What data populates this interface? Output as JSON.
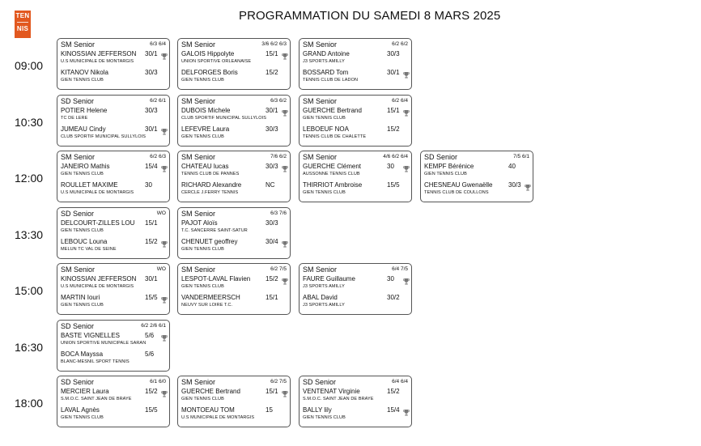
{
  "header": {
    "logo_top": "TEN",
    "logo_bottom": "NIS",
    "title": "PROGRAMMATION DU SAMEDI 8 MARS 2025"
  },
  "slots": [
    {
      "time": "09:00",
      "matches": [
        {
          "category": "SM Senior",
          "score": "6/3 6/4",
          "p1": {
            "name": "KINOSSIAN JEFFERSON",
            "rank": "30/1",
            "club": "U.S MUNICIPALE DE MONTARGIS",
            "winner": true
          },
          "p2": {
            "name": "KITANOV Nikola",
            "rank": "30/3",
            "club": "GIEN TENNIS CLUB",
            "winner": false
          }
        },
        {
          "category": "SM Senior",
          "score": "3/6 6/2 6/3",
          "p1": {
            "name": "GALOIS Hippolyte",
            "rank": "15/1",
            "club": "UNION SPORTIVE ORLEANAISE",
            "winner": true
          },
          "p2": {
            "name": "DELFORGES Boris",
            "rank": "15/2",
            "club": "GIEN TENNIS CLUB",
            "winner": false
          }
        },
        {
          "category": "SM Senior",
          "score": "6/2 6/2",
          "p1": {
            "name": "GRAND Antoine",
            "rank": "30/3",
            "club": "J3 SPORTS AMILLY",
            "winner": false
          },
          "p2": {
            "name": "BOSSARD Tom",
            "rank": "30/1",
            "club": "TENNIS CLUB DE LADON",
            "winner": true
          }
        }
      ]
    },
    {
      "time": "10:30",
      "matches": [
        {
          "category": "SD Senior",
          "score": "6/2 6/1",
          "p1": {
            "name": "POTIER Helene",
            "rank": "30/3",
            "club": "TC DE LERE",
            "winner": false
          },
          "p2": {
            "name": "JUMEAU Cindy",
            "rank": "30/1",
            "club": "CLUB SPORTIF MUNICIPAL SULLYLOIS",
            "winner": true
          }
        },
        {
          "category": "SM Senior",
          "score": "6/3 6/2",
          "p1": {
            "name": "DUBOIS Michele",
            "rank": "30/1",
            "club": "CLUB SPORTIF MUNICIPAL SULLYLOIS",
            "winner": true
          },
          "p2": {
            "name": "LEFEVRE Laura",
            "rank": "30/3",
            "club": "GIEN TENNIS CLUB",
            "winner": false
          }
        },
        {
          "category": "SM Senior",
          "score": "6/2 6/4",
          "p1": {
            "name": "GUERCHE Bertrand",
            "rank": "15/1",
            "club": "GIEN TENNIS CLUB",
            "winner": true
          },
          "p2": {
            "name": "LEBOEUF NOA",
            "rank": "15/2",
            "club": "TENNIS CLUB DE CHALETTE",
            "winner": false
          }
        }
      ]
    },
    {
      "time": "12:00",
      "matches": [
        {
          "category": "SM Senior",
          "score": "6/2 6/3",
          "p1": {
            "name": "JANEIRO Mathis",
            "rank": "15/4",
            "club": "GIEN TENNIS CLUB",
            "winner": true
          },
          "p2": {
            "name": "ROULLET MAXIME",
            "rank": "30",
            "club": "U.S MUNICIPALE DE MONTARGIS",
            "winner": false
          }
        },
        {
          "category": "SM Senior",
          "score": "7/6 6/2",
          "p1": {
            "name": "CHATEAU lucas",
            "rank": "30/3",
            "club": "TENNIS CLUB DE PANNES",
            "winner": true
          },
          "p2": {
            "name": "RICHARD Alexandre",
            "rank": "NC",
            "club": "CERCLE J.FERRY TENNIS",
            "winner": false
          }
        },
        {
          "category": "SM Senior",
          "score": "4/6 6/2 6/4",
          "p1": {
            "name": "GUERCHE Clément",
            "rank": "30",
            "club": "AUSSONNE TENNIS CLUB",
            "winner": true
          },
          "p2": {
            "name": "THIRRIOT Ambroise",
            "rank": "15/5",
            "club": "GIEN TENNIS CLUB",
            "winner": false
          }
        },
        {
          "category": "SD Senior",
          "score": "7/5 6/1",
          "p1": {
            "name": "KEMPF Bérénice",
            "rank": "40",
            "club": "GIEN TENNIS CLUB",
            "winner": false
          },
          "p2": {
            "name": "CHESNEAU Gwenaëlle",
            "rank": "30/3",
            "club": "TENNIS CLUB DE COULLONS",
            "winner": true
          }
        }
      ]
    },
    {
      "time": "13:30",
      "matches": [
        {
          "category": "SD Senior",
          "score": "WO",
          "p1": {
            "name": "DELCOURT-ZILLES LOU",
            "rank": "15/1",
            "club": "GIEN TENNIS CLUB",
            "winner": false
          },
          "p2": {
            "name": "LEBOUC Louna",
            "rank": "15/2",
            "club": "MELUN TC VAL DE SEINE",
            "winner": true
          }
        },
        {
          "category": "SM Senior",
          "score": "6/3 7/6",
          "p1": {
            "name": "PAJOT Aloïs",
            "rank": "30/3",
            "club": "T.C. SANCERRE SAINT-SATUR",
            "winner": false
          },
          "p2": {
            "name": "CHENUET geoffrey",
            "rank": "30/4",
            "club": "GIEN TENNIS CLUB",
            "winner": true
          }
        }
      ]
    },
    {
      "time": "15:00",
      "matches": [
        {
          "category": "SM Senior",
          "score": "WO",
          "p1": {
            "name": "KINOSSIAN JEFFERSON",
            "rank": "30/1",
            "club": "U.S MUNICIPALE DE MONTARGIS",
            "winner": false
          },
          "p2": {
            "name": "MARTIN Iouri",
            "rank": "15/5",
            "club": "GIEN TENNIS CLUB",
            "winner": true
          }
        },
        {
          "category": "SM Senior",
          "score": "6/2 7/5",
          "p1": {
            "name": "LESPOT-LAVAL Flavien",
            "rank": "15/2",
            "club": "GIEN TENNIS CLUB",
            "winner": true
          },
          "p2": {
            "name": "VANDERMEERSCH",
            "rank": "15/1",
            "club": "NEUVY SUR LOIRE T.C.",
            "winner": false
          }
        },
        {
          "category": "SM Senior",
          "score": "6/4 7/5",
          "p1": {
            "name": "FAURE Guillaume",
            "rank": "30",
            "club": "J3 SPORTS AMILLY",
            "winner": true
          },
          "p2": {
            "name": "ABAL David",
            "rank": "30/2",
            "club": "J3 SPORTS AMILLY",
            "winner": false
          }
        }
      ]
    },
    {
      "time": "16:30",
      "matches": [
        {
          "category": "SD Senior",
          "score": "6/2 2/6 6/1",
          "p1": {
            "name": "BASTE VIGNELLES",
            "rank": "5/6",
            "club": "UNION SPORTIVE MUNICIPALE SARAN",
            "winner": true
          },
          "p2": {
            "name": "BOCA Mayssa",
            "rank": "5/6",
            "club": "BLANC-MESNIL SPORT TENNIS",
            "winner": false
          }
        }
      ]
    },
    {
      "time": "18:00",
      "matches": [
        {
          "category": "SD Senior",
          "score": "6/1 6/0",
          "p1": {
            "name": "MERCIER Laura",
            "rank": "15/2",
            "club": "S.M.O.C. SAINT JEAN DE BRAYE",
            "winner": true
          },
          "p2": {
            "name": "LAVAL Agnès",
            "rank": "15/5",
            "club": "GIEN TENNIS CLUB",
            "winner": false
          }
        },
        {
          "category": "SM Senior",
          "score": "6/2 7/5",
          "p1": {
            "name": "GUERCHE Bertrand",
            "rank": "15/1",
            "club": "GIEN TENNIS CLUB",
            "winner": true
          },
          "p2": {
            "name": "MONTOEAU TOM",
            "rank": "15",
            "club": "U.S MUNICIPALE DE MONTARGIS",
            "winner": false
          }
        },
        {
          "category": "SD Senior",
          "score": "6/4 6/4",
          "p1": {
            "name": "VENTENAT Virginie",
            "rank": "15/2",
            "club": "S.M.O.C. SAINT JEAN DE BRAYE",
            "winner": false
          },
          "p2": {
            "name": "BALLY lily",
            "rank": "15/4",
            "club": "GIEN TENNIS CLUB",
            "winner": true
          }
        }
      ]
    }
  ]
}
